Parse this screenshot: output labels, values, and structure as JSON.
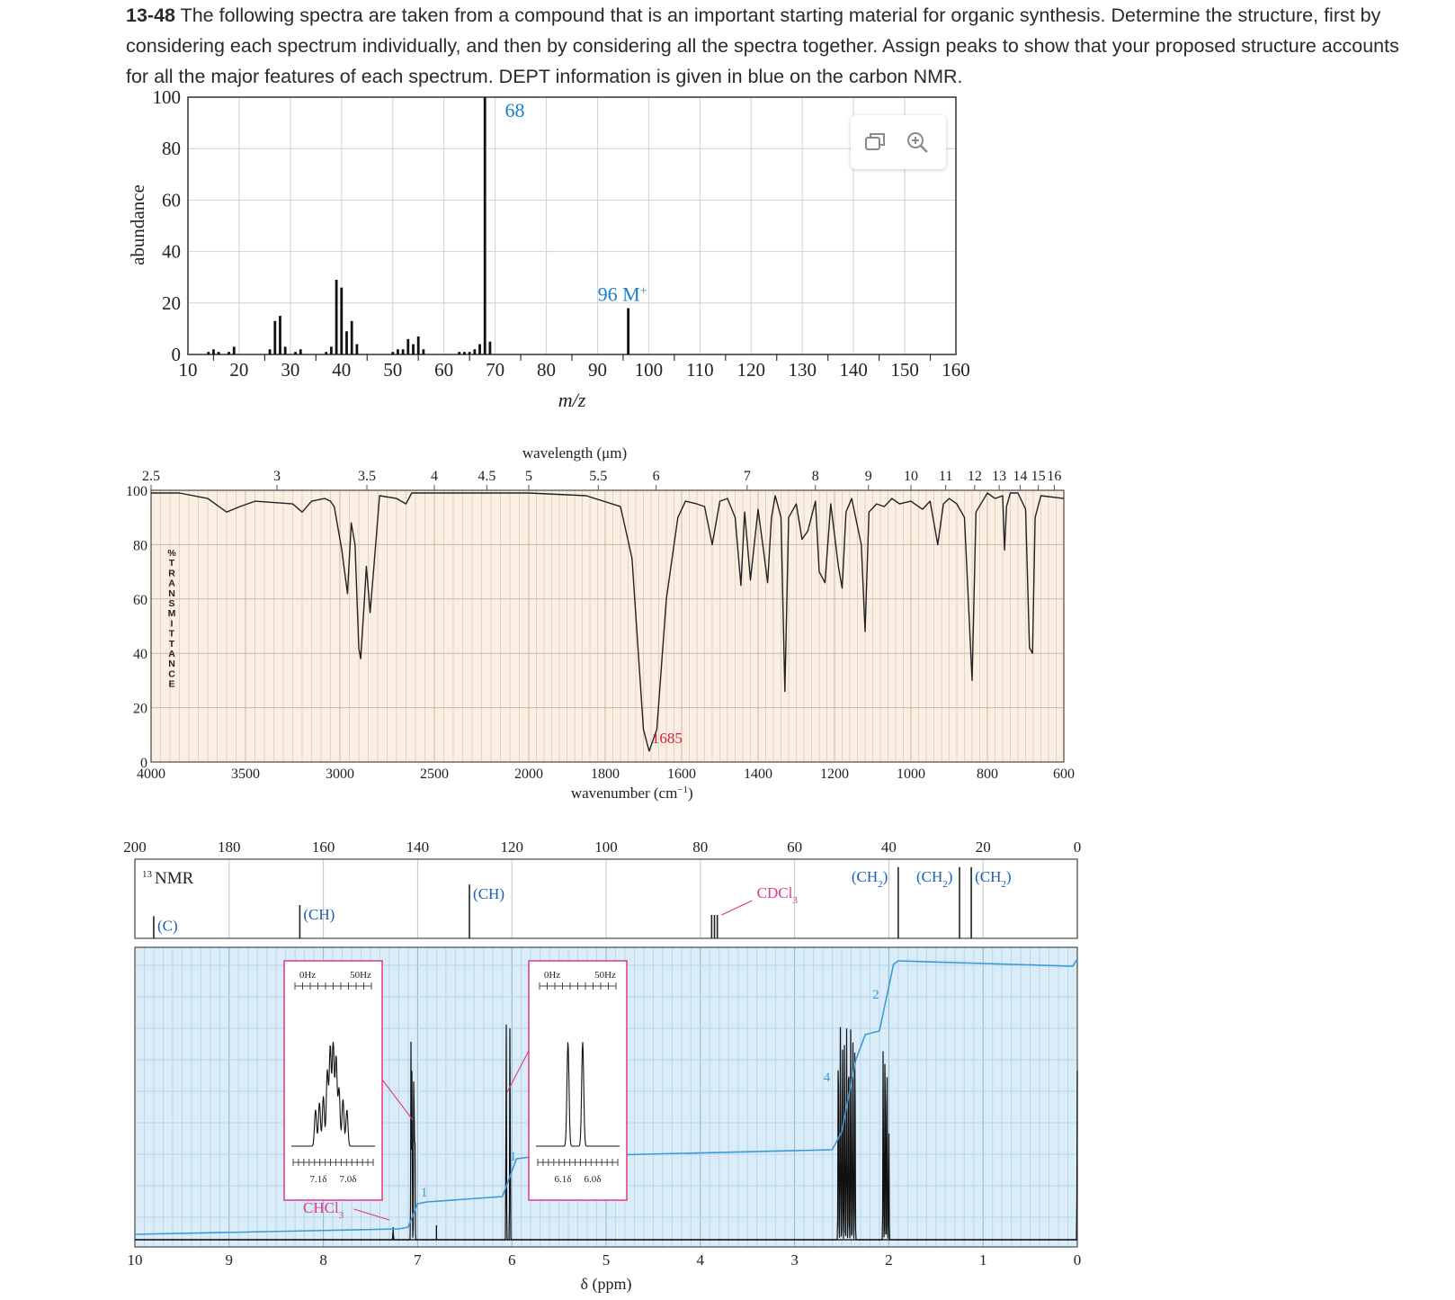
{
  "problem": {
    "number": "13-48",
    "text": " The following spectra are taken from a compound that is an important starting material for organic synthesis. Determine the structure, first by considering each spectrum individually, and then by considering all the spectra together. Assign peaks to show that your proposed structure accounts for all the major features of each spectrum. DEPT information is given in blue on the carbon NMR."
  },
  "toolbar": {
    "copy_icon": "copy-icon",
    "zoom_icon": "zoom-in-icon"
  },
  "colors": {
    "ms_label": "#1a7ec8",
    "ir_label": "#d0203a",
    "cnmr_label": "#1a5fb0",
    "integral": "#3c9ad6",
    "pink": "#e0388a",
    "ir_bg": "#fbeee2",
    "hnmr_bg": "#d9ecf8"
  },
  "chart_data": [
    {
      "type": "bar",
      "id": "mass-spectrum",
      "xlabel": "m/z",
      "ylabel": "abundance",
      "xlim": [
        10,
        160
      ],
      "ylim": [
        0,
        100
      ],
      "x_ticks": [
        "10",
        "20",
        "30",
        "40",
        "50",
        "60",
        "70",
        "80",
        "90",
        "100",
        "110",
        "120",
        "130",
        "140",
        "150",
        "160"
      ],
      "y_ticks": [
        "0",
        "20",
        "40",
        "60",
        "80",
        "100"
      ],
      "grid": true,
      "peaks": [
        {
          "mz": 14,
          "ab": 1
        },
        {
          "mz": 15,
          "ab": 2
        },
        {
          "mz": 16,
          "ab": 1
        },
        {
          "mz": 18,
          "ab": 1
        },
        {
          "mz": 19,
          "ab": 3
        },
        {
          "mz": 26,
          "ab": 2
        },
        {
          "mz": 27,
          "ab": 13
        },
        {
          "mz": 28,
          "ab": 15
        },
        {
          "mz": 29,
          "ab": 3
        },
        {
          "mz": 31,
          "ab": 1
        },
        {
          "mz": 32,
          "ab": 2
        },
        {
          "mz": 37,
          "ab": 1
        },
        {
          "mz": 38,
          "ab": 3
        },
        {
          "mz": 39,
          "ab": 29
        },
        {
          "mz": 40,
          "ab": 26
        },
        {
          "mz": 41,
          "ab": 9
        },
        {
          "mz": 42,
          "ab": 13
        },
        {
          "mz": 43,
          "ab": 4
        },
        {
          "mz": 50,
          "ab": 1
        },
        {
          "mz": 51,
          "ab": 2
        },
        {
          "mz": 52,
          "ab": 2
        },
        {
          "mz": 53,
          "ab": 6
        },
        {
          "mz": 54,
          "ab": 4
        },
        {
          "mz": 55,
          "ab": 7
        },
        {
          "mz": 56,
          "ab": 2
        },
        {
          "mz": 63,
          "ab": 1
        },
        {
          "mz": 64,
          "ab": 1
        },
        {
          "mz": 65,
          "ab": 1
        },
        {
          "mz": 66,
          "ab": 2
        },
        {
          "mz": 67,
          "ab": 4
        },
        {
          "mz": 68,
          "ab": 100
        },
        {
          "mz": 69,
          "ab": 5
        },
        {
          "mz": 96,
          "ab": 18
        }
      ],
      "annotations": [
        {
          "text": "68",
          "mz": 68
        },
        {
          "text": "96 M",
          "sup": "+",
          "mz": 96
        }
      ]
    },
    {
      "type": "line",
      "id": "ir-spectrum",
      "xlabel": "wavenumber (cm",
      "xlabel_sup": "−1",
      "xlabel_end": ")",
      "top_label": "wavelength (μm)",
      "ylabel": "%TRANSMITTANCE",
      "ylim": [
        0,
        100
      ],
      "y_ticks": [
        "0",
        "20",
        "40",
        "60",
        "80",
        "100"
      ],
      "bottom_ticks": [
        "4000",
        "3500",
        "3000",
        "2500",
        "2000",
        "1800",
        "1600",
        "1400",
        "1200",
        "1000",
        "800",
        "600"
      ],
      "top_ticks": [
        "2.5",
        "3",
        "3.5",
        "4",
        "4.5",
        "5",
        "5.5",
        "6",
        "7",
        "8",
        "9",
        "10",
        "11",
        "12",
        "13",
        "14",
        "15",
        "16"
      ],
      "annotations": [
        {
          "text": "1685",
          "wavenumber": 1685
        }
      ],
      "points": [
        [
          4000,
          99
        ],
        [
          3850,
          99
        ],
        [
          3700,
          97
        ],
        [
          3600,
          92
        ],
        [
          3530,
          94
        ],
        [
          3450,
          96
        ],
        [
          3250,
          95
        ],
        [
          3200,
          92
        ],
        [
          3150,
          96
        ],
        [
          3080,
          97
        ],
        [
          3050,
          96
        ],
        [
          3030,
          94
        ],
        [
          2990,
          78
        ],
        [
          2960,
          62
        ],
        [
          2940,
          88
        ],
        [
          2920,
          80
        ],
        [
          2900,
          42
        ],
        [
          2890,
          38
        ],
        [
          2870,
          60
        ],
        [
          2860,
          72
        ],
        [
          2840,
          55
        ],
        [
          2820,
          72
        ],
        [
          2790,
          98
        ],
        [
          2700,
          97
        ],
        [
          2650,
          95
        ],
        [
          2620,
          99
        ],
        [
          2000,
          99
        ],
        [
          1850,
          98
        ],
        [
          1760,
          94
        ],
        [
          1730,
          75
        ],
        [
          1700,
          12
        ],
        [
          1685,
          4
        ],
        [
          1665,
          12
        ],
        [
          1640,
          60
        ],
        [
          1610,
          90
        ],
        [
          1590,
          96
        ],
        [
          1560,
          95
        ],
        [
          1540,
          94
        ],
        [
          1520,
          80
        ],
        [
          1500,
          96
        ],
        [
          1480,
          97
        ],
        [
          1460,
          90
        ],
        [
          1445,
          65
        ],
        [
          1435,
          92
        ],
        [
          1420,
          67
        ],
        [
          1400,
          93
        ],
        [
          1385,
          77
        ],
        [
          1375,
          66
        ],
        [
          1365,
          90
        ],
        [
          1355,
          98
        ],
        [
          1340,
          90
        ],
        [
          1330,
          26
        ],
        [
          1320,
          90
        ],
        [
          1300,
          95
        ],
        [
          1285,
          82
        ],
        [
          1270,
          85
        ],
        [
          1250,
          96
        ],
        [
          1240,
          70
        ],
        [
          1225,
          66
        ],
        [
          1210,
          95
        ],
        [
          1190,
          72
        ],
        [
          1180,
          64
        ],
        [
          1170,
          92
        ],
        [
          1155,
          97
        ],
        [
          1130,
          80
        ],
        [
          1120,
          48
        ],
        [
          1110,
          92
        ],
        [
          1090,
          95
        ],
        [
          1070,
          94
        ],
        [
          1050,
          97
        ],
        [
          1030,
          95
        ],
        [
          1000,
          96
        ],
        [
          970,
          93
        ],
        [
          950,
          96
        ],
        [
          930,
          80
        ],
        [
          915,
          95
        ],
        [
          900,
          97
        ],
        [
          880,
          95
        ],
        [
          860,
          90
        ],
        [
          840,
          30
        ],
        [
          830,
          92
        ],
        [
          800,
          99
        ],
        [
          780,
          97
        ],
        [
          760,
          98
        ],
        [
          755,
          78
        ],
        [
          750,
          94
        ],
        [
          740,
          99
        ],
        [
          720,
          99
        ],
        [
          700,
          93
        ],
        [
          690,
          42
        ],
        [
          682,
          40
        ],
        [
          675,
          90
        ],
        [
          660,
          98
        ],
        [
          600,
          97
        ]
      ]
    },
    {
      "type": "line",
      "id": "carbon-13-nmr",
      "title": "13C NMR",
      "xlim": [
        200,
        0
      ],
      "x_ticks": [
        "200",
        "180",
        "160",
        "140",
        "120",
        "100",
        "80",
        "60",
        "40",
        "20",
        "0"
      ],
      "solvent": "CDCl",
      "solvent_sub": "3",
      "solvent_ppm": 77,
      "peaks": [
        {
          "ppm": 196,
          "height": 0.28,
          "dept": "(C)"
        },
        {
          "ppm": 165,
          "height": 0.42,
          "dept": "(CH)"
        },
        {
          "ppm": 129,
          "height": 0.68,
          "dept": "(CH)"
        },
        {
          "ppm": 38,
          "height": 0.9,
          "dept": "(CH2)"
        },
        {
          "ppm": 25,
          "height": 0.9,
          "dept": "(CH2)"
        },
        {
          "ppm": 22.5,
          "height": 0.9,
          "dept": "(CH2)"
        }
      ]
    },
    {
      "type": "line",
      "id": "proton-nmr",
      "xlabel": "δ (ppm)",
      "xlim": [
        10,
        0
      ],
      "x_ticks": [
        "10",
        "9",
        "8",
        "7",
        "6",
        "5",
        "4",
        "3",
        "2",
        "1",
        "0"
      ],
      "peaks": [
        {
          "ppm": 7.05,
          "integral": "1"
        },
        {
          "ppm": 6.05,
          "integral": "1"
        },
        {
          "ppm": 2.45,
          "integral": "4"
        },
        {
          "ppm": 2.05,
          "integral": "2"
        }
      ],
      "solvent": "CHCl",
      "solvent_sub": "3",
      "solvent_ppm": 7.26,
      "insets": [
        {
          "top_left": "0Hz",
          "top_right": "50Hz",
          "bottom_left": "7.1δ",
          "bottom_right": "7.0δ"
        },
        {
          "top_left": "0Hz",
          "top_right": "50Hz",
          "bottom_left": "6.1δ",
          "bottom_right": "6.0δ"
        }
      ]
    }
  ]
}
